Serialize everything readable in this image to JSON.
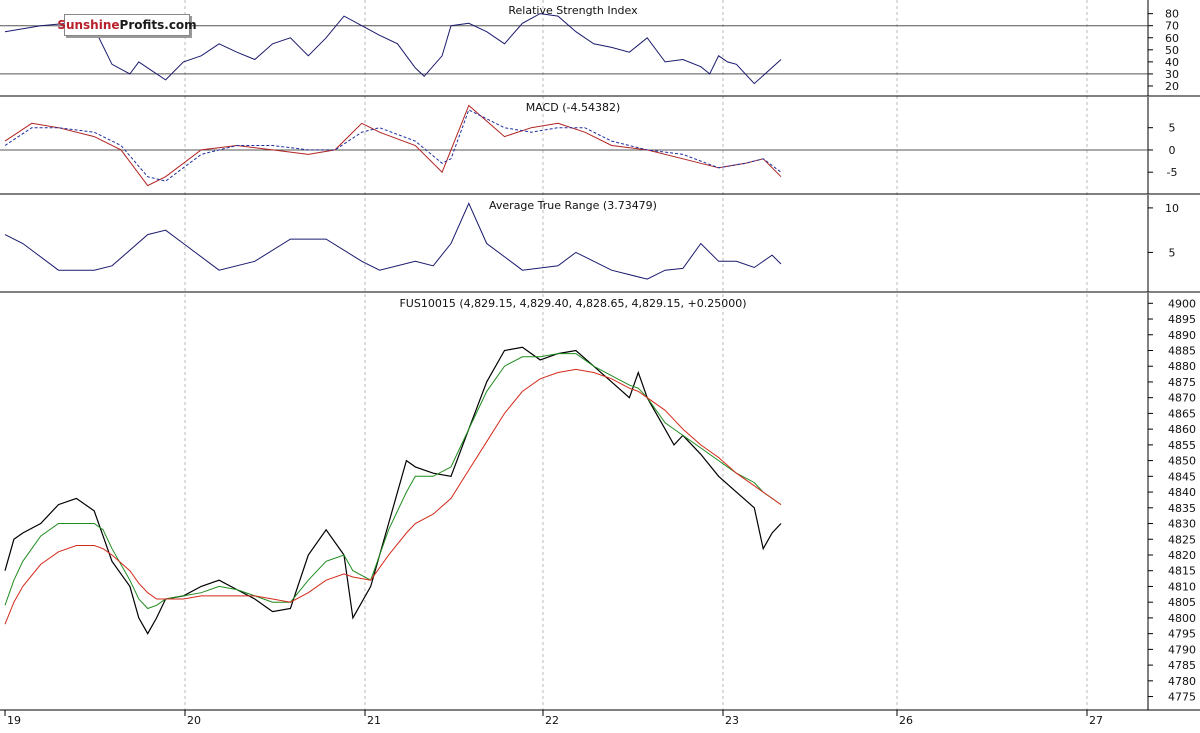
{
  "brand": {
    "part1": "Sunshine",
    "part2": "Profits.com"
  },
  "colors": {
    "price": "#000000",
    "rsi": "#1a1a6e",
    "atr": "#1a1a6e",
    "macd": "#b22222",
    "macd_signal": "#1f2f9f",
    "ma_short": "#1f8c1f",
    "ma_long": "#d42a1a",
    "grid": "#b8b8b8",
    "ref_line": "#555555"
  },
  "chart_data": [
    {
      "type": "line",
      "title": "Relative Strength Index",
      "ylim": [
        15,
        88
      ],
      "yticks": [
        20,
        30,
        40,
        50,
        60,
        70,
        80
      ],
      "ref_lines": [
        70,
        30
      ],
      "x": [
        0.0,
        0.2,
        0.35,
        0.5,
        0.6,
        0.7,
        0.75,
        0.8,
        0.9,
        1.0,
        1.1,
        1.2,
        1.3,
        1.4,
        1.5,
        1.6,
        1.7,
        1.8,
        1.9,
        2.0,
        2.1,
        2.2,
        2.3,
        2.35,
        2.45,
        2.5,
        2.6,
        2.7,
        2.8,
        2.9,
        3.0,
        3.1,
        3.2,
        3.3,
        3.4,
        3.5,
        3.6,
        3.7,
        3.8,
        3.9,
        3.95,
        4.0,
        4.05,
        4.1,
        4.2,
        4.35
      ],
      "values": [
        65,
        70,
        72,
        68,
        38,
        30,
        40,
        35,
        25,
        40,
        45,
        55,
        48,
        42,
        55,
        60,
        45,
        60,
        78,
        70,
        62,
        55,
        35,
        28,
        45,
        70,
        72,
        65,
        55,
        72,
        80,
        78,
        65,
        55,
        52,
        48,
        60,
        40,
        42,
        36,
        30,
        45,
        40,
        38,
        22,
        42
      ]
    },
    {
      "type": "line",
      "title": "MACD (-4.54382)",
      "ylim": [
        -9,
        11
      ],
      "yticks": [
        -5,
        0,
        5
      ],
      "ref_lines": [
        0
      ],
      "x": [
        0.0,
        0.15,
        0.3,
        0.5,
        0.65,
        0.8,
        0.9,
        1.1,
        1.3,
        1.5,
        1.7,
        1.85,
        2.0,
        2.1,
        2.3,
        2.45,
        2.5,
        2.6,
        2.8,
        2.95,
        3.1,
        3.25,
        3.4,
        3.6,
        3.8,
        4.0,
        4.15,
        4.25,
        4.35
      ],
      "series": [
        {
          "values": [
            2,
            6,
            5,
            3,
            0,
            -8,
            -6,
            0,
            1,
            0,
            -1,
            0,
            6,
            4,
            1,
            -5,
            0,
            10,
            3,
            5,
            6,
            4,
            1,
            0,
            -2,
            -4,
            -3,
            -2,
            -6
          ]
        },
        {
          "values": [
            1,
            5,
            5,
            4,
            1,
            -6,
            -7,
            -1,
            1,
            1,
            0,
            0,
            4,
            5,
            2,
            -3,
            -2,
            9,
            5,
            4,
            5,
            5,
            2,
            0,
            -1,
            -4,
            -3,
            -2,
            -5
          ]
        }
      ]
    },
    {
      "type": "line",
      "title": "Average True Range (3.73479)",
      "ylim": [
        1,
        11
      ],
      "yticks": [
        5,
        10
      ],
      "x": [
        0.0,
        0.1,
        0.3,
        0.5,
        0.6,
        0.8,
        0.9,
        1.0,
        1.2,
        1.4,
        1.6,
        1.8,
        2.0,
        2.1,
        2.3,
        2.4,
        2.5,
        2.6,
        2.7,
        2.9,
        3.1,
        3.2,
        3.4,
        3.6,
        3.7,
        3.8,
        3.9,
        4.0,
        4.1,
        4.2,
        4.3,
        4.35
      ],
      "values": [
        7,
        6,
        3,
        3,
        3.5,
        7,
        7.5,
        6,
        3,
        4,
        6.5,
        6.5,
        4,
        3,
        4,
        3.5,
        6,
        10.5,
        6,
        3,
        3.5,
        5,
        3,
        2,
        3,
        3.2,
        6,
        4,
        4,
        3.3,
        4.7,
        3.7
      ]
    },
    {
      "type": "line",
      "title": "FUS10015 (4,829.15, 4,829.40, 4,828.65, 4,829.15, +0.25000)",
      "ylim": [
        4772,
        4902
      ],
      "yticks": [
        4775,
        4780,
        4785,
        4790,
        4795,
        4800,
        4805,
        4810,
        4815,
        4820,
        4825,
        4830,
        4835,
        4840,
        4845,
        4850,
        4855,
        4860,
        4865,
        4870,
        4875,
        4880,
        4885,
        4890,
        4895,
        4900
      ],
      "xlabels": [
        "19",
        "20",
        "21",
        "22",
        "23",
        "26",
        "27"
      ],
      "x": [
        0.0,
        0.05,
        0.1,
        0.2,
        0.3,
        0.4,
        0.5,
        0.55,
        0.6,
        0.7,
        0.75,
        0.8,
        0.85,
        0.9,
        1.0,
        1.1,
        1.2,
        1.3,
        1.4,
        1.5,
        1.6,
        1.7,
        1.8,
        1.9,
        1.95,
        2.05,
        2.15,
        2.25,
        2.3,
        2.4,
        2.5,
        2.6,
        2.7,
        2.8,
        2.9,
        3.0,
        3.1,
        3.2,
        3.3,
        3.4,
        3.5,
        3.55,
        3.6,
        3.7,
        3.75,
        3.8,
        3.9,
        4.0,
        4.1,
        4.2,
        4.25,
        4.3,
        4.35
      ],
      "series": [
        {
          "name": "",
          "values": [
            4815,
            4825,
            4827,
            4830,
            4836,
            4838,
            4834,
            4826,
            4818,
            4810,
            4800,
            4795,
            4800,
            4806,
            4807,
            4810,
            4812,
            4809,
            4806,
            4802,
            4803,
            4820,
            4828,
            4820,
            4800,
            4810,
            4830,
            4850,
            4848,
            4846,
            4845,
            4860,
            4875,
            4885,
            4886,
            4882,
            4884,
            4885,
            4880,
            4875,
            4870,
            4878,
            4870,
            4860,
            4855,
            4858,
            4852,
            4845,
            4840,
            4835,
            4822,
            4827,
            4830
          ]
        },
        {
          "name": "",
          "values": [
            4804,
            4812,
            4818,
            4826,
            4830,
            4830,
            4830,
            4828,
            4822,
            4812,
            4806,
            4803,
            4804,
            4806,
            4807,
            4808,
            4810,
            4809,
            4807,
            4805,
            4805,
            4812,
            4818,
            4820,
            4815,
            4812,
            4828,
            4840,
            4845,
            4845,
            4848,
            4860,
            4872,
            4880,
            4883,
            4883,
            4884,
            4884,
            4880,
            4877,
            4874,
            4873,
            4870,
            4862,
            4860,
            4858,
            4854,
            4850,
            4846,
            4843,
            4840,
            4838,
            4836
          ]
        },
        {
          "name": "",
          "values": [
            4798,
            4805,
            4810,
            4817,
            4821,
            4823,
            4823,
            4822,
            4820,
            4815,
            4811,
            4808,
            4806,
            4806,
            4806,
            4807,
            4807,
            4807,
            4807,
            4806,
            4805,
            4808,
            4812,
            4814,
            4813,
            4812,
            4820,
            4827,
            4830,
            4833,
            4838,
            4847,
            4856,
            4865,
            4872,
            4876,
            4878,
            4879,
            4878,
            4876,
            4873,
            4872,
            4870,
            4866,
            4863,
            4860,
            4855,
            4851,
            4846,
            4842,
            4840,
            4838,
            4836
          ]
        }
      ]
    }
  ]
}
